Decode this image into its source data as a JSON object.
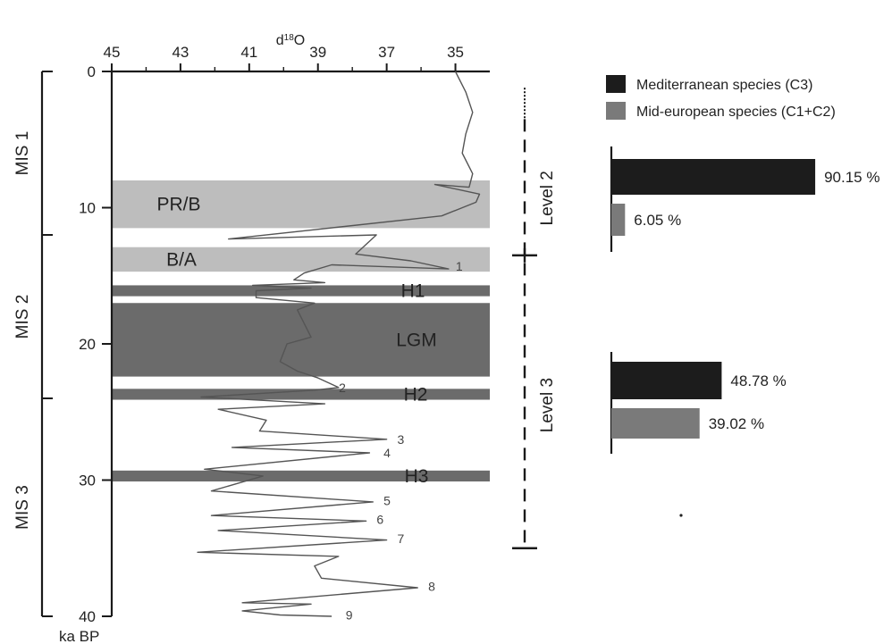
{
  "chart_data": [
    {
      "type": "line",
      "xlabel": "d18O",
      "ylabel": "ka BP",
      "xlim": [
        45,
        34
      ],
      "ylim": [
        0,
        40
      ],
      "x_ticks": [
        "45",
        "43",
        "41",
        "39",
        "37",
        "35"
      ],
      "y_ticks": [
        "0",
        "10",
        "20",
        "30",
        "40"
      ],
      "series": [
        {
          "points": [
            [
              35.0,
              0.0
            ],
            [
              34.7,
              1.5
            ],
            [
              34.5,
              3.0
            ],
            [
              34.7,
              4.6
            ],
            [
              34.8,
              6.0
            ],
            [
              34.5,
              7.5
            ],
            [
              34.6,
              8.5
            ],
            [
              35.6,
              8.3
            ],
            [
              34.3,
              9.0
            ],
            [
              34.4,
              9.6
            ],
            [
              35.4,
              10.6
            ],
            [
              41.6,
              12.3
            ],
            [
              37.3,
              12.0
            ],
            [
              37.9,
              13.4
            ],
            [
              36.3,
              13.9
            ],
            [
              35.2,
              14.5
            ],
            [
              38.6,
              14.2
            ],
            [
              39.4,
              14.8
            ],
            [
              39.7,
              15.3
            ],
            [
              38.8,
              15.5
            ],
            [
              40.9,
              15.7
            ],
            [
              39.2,
              15.9
            ],
            [
              40.8,
              16.1
            ],
            [
              40.8,
              16.6
            ],
            [
              39.1,
              17.0
            ],
            [
              39.6,
              17.5
            ],
            [
              39.2,
              19.5
            ],
            [
              39.9,
              20.0
            ],
            [
              40.1,
              21.3
            ],
            [
              39.6,
              22.0
            ],
            [
              39.0,
              22.5
            ],
            [
              38.4,
              23.2
            ],
            [
              39.1,
              23.4
            ],
            [
              42.4,
              23.9
            ],
            [
              38.8,
              24.4
            ],
            [
              41.9,
              24.8
            ],
            [
              40.5,
              25.6
            ],
            [
              40.7,
              26.4
            ],
            [
              37.0,
              27.0
            ],
            [
              41.5,
              27.6
            ],
            [
              37.5,
              28.0
            ],
            [
              42.3,
              29.2
            ],
            [
              40.6,
              29.7
            ],
            [
              42.1,
              30.8
            ],
            [
              37.4,
              31.6
            ],
            [
              42.1,
              32.6
            ],
            [
              37.6,
              33.0
            ],
            [
              41.9,
              33.7
            ],
            [
              37.0,
              34.4
            ],
            [
              42.5,
              35.3
            ],
            [
              38.4,
              35.6
            ],
            [
              39.1,
              36.3
            ],
            [
              38.9,
              37.2
            ],
            [
              36.1,
              37.9
            ],
            [
              41.2,
              39.0
            ],
            [
              39.2,
              39.1
            ],
            [
              41.2,
              39.6
            ],
            [
              40.1,
              39.9
            ],
            [
              38.6,
              40.0
            ]
          ]
        }
      ],
      "bands": [
        {
          "label": "PR/B",
          "y_range": [
            8.0,
            11.5
          ],
          "color": "#bdbdbd"
        },
        {
          "label": "B/A",
          "y_range": [
            12.9,
            14.7
          ],
          "color": "#bdbdbd"
        },
        {
          "label": "H1",
          "y_range": [
            15.7,
            16.5
          ],
          "color": "#6b6b6b"
        },
        {
          "label": "LGM",
          "y_range": [
            17.0,
            22.4
          ],
          "color": "#6b6b6b"
        },
        {
          "label": "H2",
          "y_range": [
            23.3,
            24.1
          ],
          "color": "#6b6b6b"
        },
        {
          "label": "H3",
          "y_range": [
            29.3,
            30.1
          ],
          "color": "#6b6b6b"
        }
      ],
      "events": [
        {
          "label": "1",
          "x": 35.2,
          "y": 14.3
        },
        {
          "label": "2",
          "x": 38.6,
          "y": 23.2
        },
        {
          "label": "3",
          "x": 36.9,
          "y": 27.0
        },
        {
          "label": "4",
          "x": 37.3,
          "y": 28.0
        },
        {
          "label": "5",
          "x": 37.3,
          "y": 31.5
        },
        {
          "label": "6",
          "x": 37.5,
          "y": 32.9
        },
        {
          "label": "7",
          "x": 36.9,
          "y": 34.3
        },
        {
          "label": "8",
          "x": 36.0,
          "y": 37.8
        },
        {
          "label": "9",
          "x": 38.4,
          "y": 39.9
        }
      ],
      "mis_stages": [
        {
          "label": "MIS 1",
          "y_range": [
            0,
            12
          ]
        },
        {
          "label": "MIS 2",
          "y_range": [
            12,
            24
          ]
        },
        {
          "label": "MIS 3",
          "y_range": [
            24,
            40
          ]
        }
      ],
      "levels": [
        {
          "label": "Level 2",
          "y_range": [
            3.5,
            13.5
          ]
        },
        {
          "label": "Level 3",
          "y_range": [
            13.5,
            35
          ]
        }
      ]
    },
    {
      "type": "bar",
      "orientation": "horizontal",
      "xlim": [
        0,
        100
      ],
      "groups": [
        {
          "name": "Level 2",
          "values": [
            90.15,
            6.05
          ],
          "value_labels": [
            "90.15 %",
            "6.05 %"
          ]
        },
        {
          "name": "Level 3",
          "values": [
            48.78,
            39.02
          ],
          "value_labels": [
            "48.78 %",
            "39.02 %"
          ]
        }
      ],
      "series": [
        {
          "name": "Mediterranean species (C3)",
          "color": "#1c1c1c"
        },
        {
          "name": "Mid-european species (C1+C2)",
          "color": "#7a7a7a"
        }
      ],
      "legend_position": "top-right"
    }
  ],
  "colors": {
    "axis": "#1a1a1a",
    "curve": "#555555",
    "light_band": "#bdbdbd",
    "dark_band": "#6b6b6b"
  }
}
